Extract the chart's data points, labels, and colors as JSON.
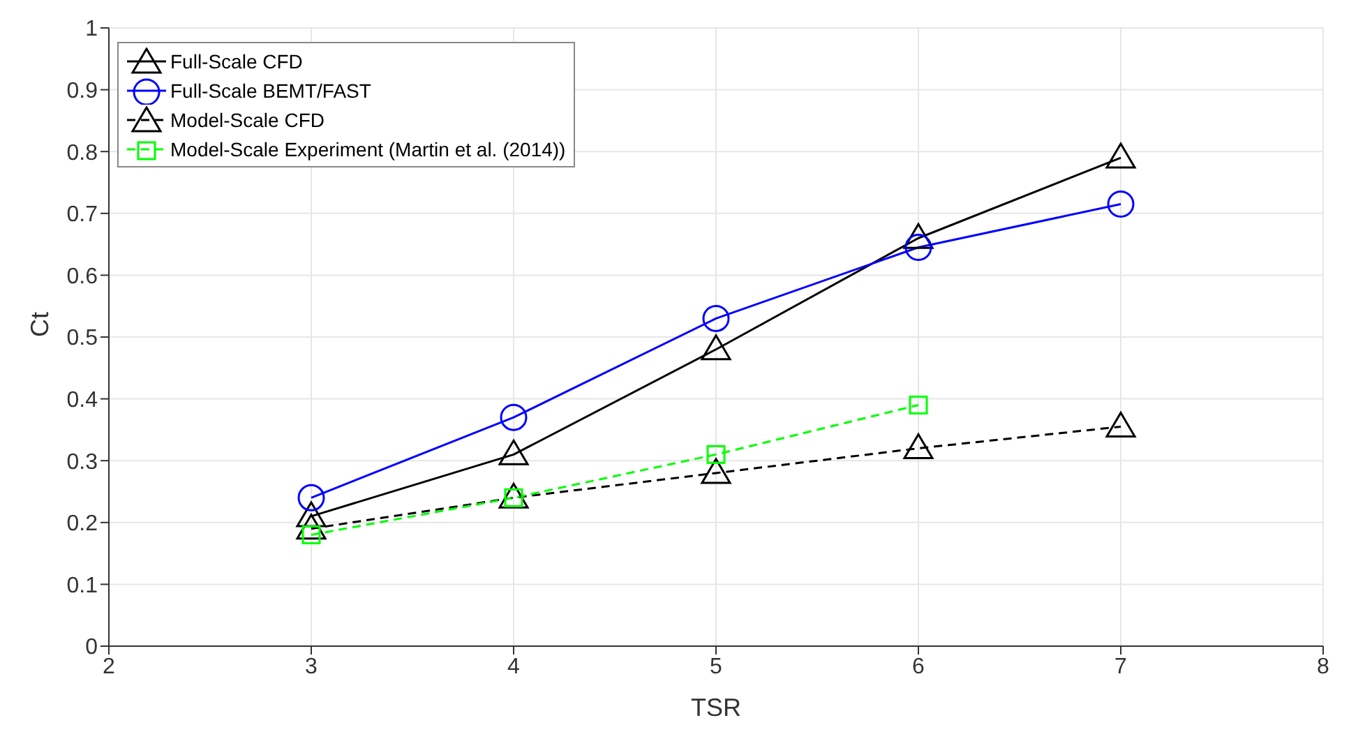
{
  "chart_data": {
    "type": "line",
    "xlabel": "TSR",
    "ylabel": "Ct",
    "xlim": [
      2,
      8
    ],
    "xticks": [
      2,
      3,
      4,
      5,
      6,
      7,
      8
    ],
    "ylim": [
      0,
      1
    ],
    "yticks": [
      0,
      0.1,
      0.2,
      0.3,
      0.4,
      0.5,
      0.6,
      0.7,
      0.8,
      0.9,
      1
    ],
    "grid": true,
    "legend": "top left",
    "series": [
      {
        "name": "Full-Scale CFD",
        "color": "#000000",
        "marker": "triangle",
        "line_style": "solid",
        "x": [
          3,
          4,
          5,
          6,
          7
        ],
        "values": [
          0.21,
          0.31,
          0.48,
          0.66,
          0.79
        ]
      },
      {
        "name": "Full-Scale BEMT/FAST",
        "color": "#0000ff",
        "marker": "circle",
        "line_style": "solid",
        "x": [
          3,
          4,
          5,
          6,
          7
        ],
        "values": [
          0.24,
          0.37,
          0.53,
          0.645,
          0.715
        ]
      },
      {
        "name": "Model-Scale CFD",
        "color": "#000000",
        "marker": "triangle",
        "line_style": "dashed",
        "x": [
          3,
          4,
          5,
          6,
          7
        ],
        "values": [
          0.19,
          0.24,
          0.28,
          0.32,
          0.355
        ]
      },
      {
        "name": "Model-Scale Experiment (Martin et al. (2014))",
        "color": "#00ff00",
        "marker": "square",
        "line_style": "dashed",
        "x": [
          3,
          4,
          5,
          6
        ],
        "values": [
          0.18,
          0.24,
          0.31,
          0.39
        ]
      }
    ]
  }
}
